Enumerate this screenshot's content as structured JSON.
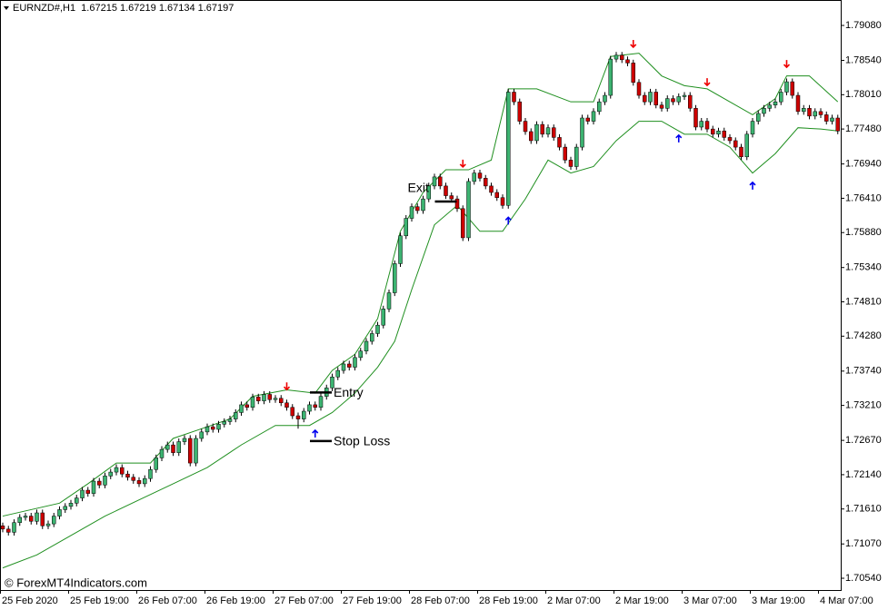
{
  "chart_data": {
    "type": "candlestick",
    "title": "EURNZD#,H1  1.67215 1.67219 1.67134 1.67197",
    "watermark": "© ForexMT4Indicators.com",
    "up_color": "#3cb371",
    "down_color": "#cc0000",
    "band_color": "#1f8f1f",
    "buy_color": "#0000ee",
    "sell_color": "#ee0000",
    "ylim": [
      1.70358,
      1.79473
    ],
    "yticks": [
      {
        "value": 1.7908,
        "label": "1.79080"
      },
      {
        "value": 1.7854,
        "label": "1.78540"
      },
      {
        "value": 1.7801,
        "label": "1.78010"
      },
      {
        "value": 1.7748,
        "label": "1.77480"
      },
      {
        "value": 1.7694,
        "label": "1.76940"
      },
      {
        "value": 1.7641,
        "label": "1.76410"
      },
      {
        "value": 1.7588,
        "label": "1.75880"
      },
      {
        "value": 1.7534,
        "label": "1.75340"
      },
      {
        "value": 1.7481,
        "label": "1.74810"
      },
      {
        "value": 1.7428,
        "label": "1.74280"
      },
      {
        "value": 1.7374,
        "label": "1.73740"
      },
      {
        "value": 1.7321,
        "label": "1.73210"
      },
      {
        "value": 1.7267,
        "label": "1.72670"
      },
      {
        "value": 1.7214,
        "label": "1.72140"
      },
      {
        "value": 1.7161,
        "label": "1.71610"
      },
      {
        "value": 1.7107,
        "label": "1.71070"
      },
      {
        "value": 1.7054,
        "label": "1.70540"
      }
    ],
    "categories": [
      "25 Feb 2020",
      null,
      null,
      null,
      null,
      null,
      null,
      null,
      null,
      null,
      null,
      null,
      "25 Feb 19:00",
      null,
      null,
      null,
      null,
      null,
      null,
      null,
      null,
      null,
      null,
      null,
      "26 Feb 07:00",
      null,
      null,
      null,
      null,
      null,
      null,
      null,
      null,
      null,
      null,
      null,
      "26 Feb 19:00",
      null,
      null,
      null,
      null,
      null,
      null,
      null,
      null,
      null,
      null,
      null,
      "27 Feb 07:00",
      null,
      null,
      null,
      null,
      null,
      null,
      null,
      null,
      null,
      null,
      null,
      "27 Feb 19:00",
      null,
      null,
      null,
      null,
      null,
      null,
      null,
      null,
      null,
      null,
      null,
      "28 Feb 07:00",
      null,
      null,
      null,
      null,
      null,
      null,
      null,
      null,
      null,
      null,
      null,
      "28 Feb 19:00",
      null,
      null,
      null,
      null,
      null,
      null,
      null,
      null,
      null,
      null,
      null,
      "2 Mar 07:00",
      null,
      null,
      null,
      null,
      null,
      null,
      null,
      null,
      null,
      null,
      null,
      "2 Mar 19:00",
      null,
      null,
      null,
      null,
      null,
      null,
      null,
      null,
      null,
      null,
      null,
      "3 Mar 07:00",
      null,
      null,
      null,
      null,
      null,
      null,
      null,
      null,
      null,
      null,
      null,
      "3 Mar 19:00",
      null,
      null,
      null,
      null,
      null,
      null,
      null,
      null,
      null,
      null,
      null,
      "4 Mar 07:00",
      null,
      null,
      null
    ],
    "open": [
      1.7135,
      1.713,
      1.7125,
      1.714,
      1.7148,
      1.715,
      1.7142,
      1.7155,
      1.7135,
      1.7138,
      1.715,
      1.716,
      1.7165,
      1.717,
      1.7178,
      1.719,
      1.7185,
      1.7204,
      1.7198,
      1.7212,
      1.7218,
      1.7225,
      1.7215,
      1.721,
      1.7205,
      1.72,
      1.7208,
      1.7222,
      1.724,
      1.7253,
      1.726,
      1.7248,
      1.7265,
      1.727,
      1.7232,
      1.727,
      1.728,
      1.7288,
      1.7284,
      1.7292,
      1.7296,
      1.73,
      1.731,
      1.7322,
      1.7318,
      1.7334,
      1.7328,
      1.7338,
      1.733,
      1.7332,
      1.7325,
      1.7318,
      1.7305,
      1.73,
      1.7312,
      1.7322,
      1.7318,
      1.7335,
      1.7348,
      1.7365,
      1.7375,
      1.7385,
      1.738,
      1.7395,
      1.7405,
      1.742,
      1.7432,
      1.7445,
      1.747,
      1.7495,
      1.754,
      1.7583,
      1.761,
      1.7628,
      1.7622,
      1.764,
      1.766,
      1.7674,
      1.766,
      1.7645,
      1.764,
      1.7625,
      1.758,
      1.7667,
      1.768,
      1.7672,
      1.766,
      1.765,
      1.7642,
      1.763,
      1.7805,
      1.779,
      1.776,
      1.7744,
      1.773,
      1.7755,
      1.774,
      1.775,
      1.7735,
      1.772,
      1.77,
      1.769,
      1.772,
      1.7765,
      1.776,
      1.7775,
      1.779,
      1.78,
      1.7856,
      1.7862,
      1.7855,
      1.785,
      1.782,
      1.78,
      1.779,
      1.7805,
      1.7785,
      1.778,
      1.7795,
      1.779,
      1.7798,
      1.78,
      1.778,
      1.7751,
      1.776,
      1.7748,
      1.774,
      1.7745,
      1.7735,
      1.773,
      1.772,
      1.7705,
      1.774,
      1.776,
      1.7772,
      1.778,
      1.7785,
      1.779,
      1.7805,
      1.7821,
      1.78,
      1.7775,
      1.778,
      1.7768,
      1.7775,
      1.777,
      1.776,
      1.7765
    ],
    "high": [
      1.714,
      1.7135,
      1.7145,
      1.7153,
      1.7155,
      1.7155,
      1.716,
      1.716,
      1.7143,
      1.7155,
      1.7165,
      1.717,
      1.7175,
      1.7183,
      1.7195,
      1.7195,
      1.7209,
      1.7209,
      1.7217,
      1.7223,
      1.723,
      1.723,
      1.722,
      1.7215,
      1.721,
      1.7213,
      1.7227,
      1.7245,
      1.7258,
      1.7265,
      1.7265,
      1.727,
      1.7275,
      1.7275,
      1.7275,
      1.7285,
      1.7293,
      1.7293,
      1.7297,
      1.7301,
      1.7305,
      1.7315,
      1.7327,
      1.7327,
      1.7339,
      1.7339,
      1.7343,
      1.7343,
      1.7337,
      1.7337,
      1.733,
      1.7323,
      1.731,
      1.7317,
      1.7327,
      1.7327,
      1.734,
      1.7353,
      1.737,
      1.738,
      1.739,
      1.739,
      1.74,
      1.741,
      1.7425,
      1.7437,
      1.745,
      1.7475,
      1.75,
      1.7545,
      1.7588,
      1.7615,
      1.7633,
      1.7633,
      1.7645,
      1.7665,
      1.7679,
      1.7679,
      1.7665,
      1.765,
      1.7645,
      1.763,
      1.7672,
      1.7685,
      1.7685,
      1.7677,
      1.7665,
      1.7655,
      1.7647,
      1.781,
      1.781,
      1.7795,
      1.7765,
      1.7749,
      1.776,
      1.776,
      1.7755,
      1.7755,
      1.774,
      1.7725,
      1.7705,
      1.7725,
      1.777,
      1.777,
      1.778,
      1.7795,
      1.7805,
      1.7861,
      1.7867,
      1.7867,
      1.786,
      1.7855,
      1.7825,
      1.7805,
      1.781,
      1.781,
      1.779,
      1.78,
      1.78,
      1.7803,
      1.7805,
      1.7805,
      1.7785,
      1.7765,
      1.7765,
      1.7753,
      1.775,
      1.775,
      1.774,
      1.7735,
      1.7725,
      1.7745,
      1.7765,
      1.7777,
      1.7785,
      1.779,
      1.7795,
      1.781,
      1.7826,
      1.7826,
      1.7805,
      1.7785,
      1.7785,
      1.778,
      1.778,
      1.7775,
      1.777,
      1.777
    ],
    "low": [
      1.7125,
      1.712,
      1.712,
      1.7135,
      1.7143,
      1.7137,
      1.7137,
      1.713,
      1.713,
      1.7133,
      1.7145,
      1.7155,
      1.716,
      1.7165,
      1.7173,
      1.718,
      1.718,
      1.7193,
      1.7193,
      1.7207,
      1.7213,
      1.721,
      1.7205,
      1.72,
      1.7195,
      1.7195,
      1.7203,
      1.7217,
      1.7235,
      1.7248,
      1.7243,
      1.7243,
      1.726,
      1.7227,
      1.7227,
      1.7265,
      1.7275,
      1.7279,
      1.7279,
      1.7287,
      1.7291,
      1.7295,
      1.7305,
      1.7313,
      1.7313,
      1.7323,
      1.7323,
      1.7325,
      1.7325,
      1.732,
      1.7313,
      1.73,
      1.7285,
      1.7295,
      1.7307,
      1.7313,
      1.7313,
      1.733,
      1.7343,
      1.736,
      1.737,
      1.7375,
      1.7375,
      1.739,
      1.74,
      1.7415,
      1.7427,
      1.744,
      1.7465,
      1.749,
      1.7535,
      1.7578,
      1.7605,
      1.7617,
      1.7617,
      1.7635,
      1.7655,
      1.7655,
      1.764,
      1.7635,
      1.762,
      1.7575,
      1.7575,
      1.7662,
      1.7667,
      1.7655,
      1.7645,
      1.7637,
      1.7625,
      1.7625,
      1.7785,
      1.7755,
      1.7739,
      1.7725,
      1.7725,
      1.7735,
      1.7735,
      1.773,
      1.7715,
      1.7695,
      1.7685,
      1.7685,
      1.7715,
      1.7755,
      1.7755,
      1.777,
      1.7785,
      1.7795,
      1.7851,
      1.785,
      1.7845,
      1.7815,
      1.7795,
      1.7785,
      1.7785,
      1.778,
      1.7775,
      1.7775,
      1.7785,
      1.7785,
      1.7793,
      1.7775,
      1.7746,
      1.7746,
      1.7743,
      1.7735,
      1.7735,
      1.773,
      1.7725,
      1.7715,
      1.77,
      1.77,
      1.7735,
      1.7755,
      1.7767,
      1.7775,
      1.778,
      1.7785,
      1.78,
      1.7795,
      1.777,
      1.777,
      1.7763,
      1.7763,
      1.7765,
      1.7755,
      1.7755,
      1.774
    ],
    "close": [
      1.713,
      1.7125,
      1.714,
      1.7148,
      1.715,
      1.7142,
      1.7155,
      1.7135,
      1.7138,
      1.715,
      1.716,
      1.7165,
      1.717,
      1.7178,
      1.719,
      1.7185,
      1.7204,
      1.7198,
      1.7212,
      1.7218,
      1.7225,
      1.7215,
      1.721,
      1.7205,
      1.72,
      1.7208,
      1.7222,
      1.724,
      1.7253,
      1.726,
      1.7248,
      1.7265,
      1.727,
      1.7232,
      1.727,
      1.728,
      1.7288,
      1.7284,
      1.7292,
      1.7296,
      1.73,
      1.731,
      1.7322,
      1.7318,
      1.7334,
      1.7328,
      1.7338,
      1.733,
      1.7332,
      1.7325,
      1.7318,
      1.7305,
      1.73,
      1.7312,
      1.7322,
      1.7318,
      1.7335,
      1.7348,
      1.7365,
      1.7375,
      1.7385,
      1.738,
      1.7395,
      1.7405,
      1.742,
      1.7432,
      1.7445,
      1.747,
      1.7495,
      1.754,
      1.7583,
      1.761,
      1.7628,
      1.7622,
      1.764,
      1.766,
      1.7674,
      1.766,
      1.7645,
      1.764,
      1.7625,
      1.758,
      1.7667,
      1.768,
      1.7672,
      1.766,
      1.765,
      1.7642,
      1.763,
      1.7805,
      1.779,
      1.776,
      1.7744,
      1.773,
      1.7755,
      1.774,
      1.775,
      1.7735,
      1.772,
      1.77,
      1.769,
      1.772,
      1.7765,
      1.776,
      1.7775,
      1.779,
      1.78,
      1.7856,
      1.7862,
      1.7855,
      1.785,
      1.782,
      1.78,
      1.779,
      1.7805,
      1.7785,
      1.778,
      1.7795,
      1.779,
      1.7798,
      1.78,
      1.778,
      1.7751,
      1.776,
      1.7748,
      1.774,
      1.7745,
      1.7735,
      1.773,
      1.772,
      1.7705,
      1.774,
      1.776,
      1.7772,
      1.778,
      1.7785,
      1.779,
      1.7805,
      1.7821,
      1.78,
      1.7775,
      1.778,
      1.7768,
      1.7775,
      1.777,
      1.776,
      1.7765,
      1.7745
    ],
    "upper_band": {
      "x": [
        0,
        5,
        10,
        15,
        20,
        26,
        30,
        35,
        40,
        44,
        50,
        55,
        58,
        62,
        66,
        70,
        74,
        78,
        82,
        86,
        89,
        94,
        100,
        104,
        107,
        112,
        116,
        120,
        124,
        128,
        132,
        136,
        138,
        142,
        147
      ],
      "values": [
        1.715,
        1.716,
        1.717,
        1.72,
        1.7232,
        1.7232,
        1.727,
        1.7285,
        1.73,
        1.7335,
        1.7345,
        1.734,
        1.7375,
        1.74,
        1.7455,
        1.759,
        1.765,
        1.7685,
        1.7685,
        1.77,
        1.781,
        1.781,
        1.779,
        1.779,
        1.786,
        1.7865,
        1.783,
        1.7815,
        1.781,
        1.779,
        1.777,
        1.7795,
        1.783,
        1.783,
        1.779
      ]
    },
    "lower_band": {
      "x": [
        0,
        6,
        12,
        18,
        24,
        30,
        36,
        42,
        48,
        54,
        58,
        62,
        66,
        69,
        72,
        76,
        80,
        84,
        88,
        92,
        96,
        100,
        104,
        108,
        112,
        116,
        120,
        124,
        128,
        132,
        136,
        140,
        144,
        147
      ],
      "values": [
        1.707,
        1.709,
        1.712,
        1.715,
        1.7175,
        1.72,
        1.7225,
        1.726,
        1.729,
        1.729,
        1.731,
        1.734,
        1.738,
        1.742,
        1.75,
        1.76,
        1.763,
        1.759,
        1.759,
        1.764,
        1.77,
        1.768,
        1.769,
        1.773,
        1.776,
        1.776,
        1.774,
        1.774,
        1.772,
        1.768,
        1.771,
        1.775,
        1.7748,
        1.7745
      ]
    },
    "sell_signals": {
      "x": [
        50,
        81,
        111,
        124,
        138
      ],
      "values": [
        1.7351,
        1.7695,
        1.788,
        1.7821,
        1.7849
      ]
    },
    "buy_signals": {
      "x": [
        55,
        89,
        119,
        132
      ],
      "values": [
        1.7277,
        1.7606,
        1.7733,
        1.766
      ]
    },
    "annotations": [
      {
        "text": "Exit",
        "x": 78,
        "value": 1.7636
      },
      {
        "text": "Entry",
        "x": 56,
        "value": 1.7341
      },
      {
        "text": "Stop Loss",
        "x": 56,
        "value": 1.7266
      }
    ]
  }
}
